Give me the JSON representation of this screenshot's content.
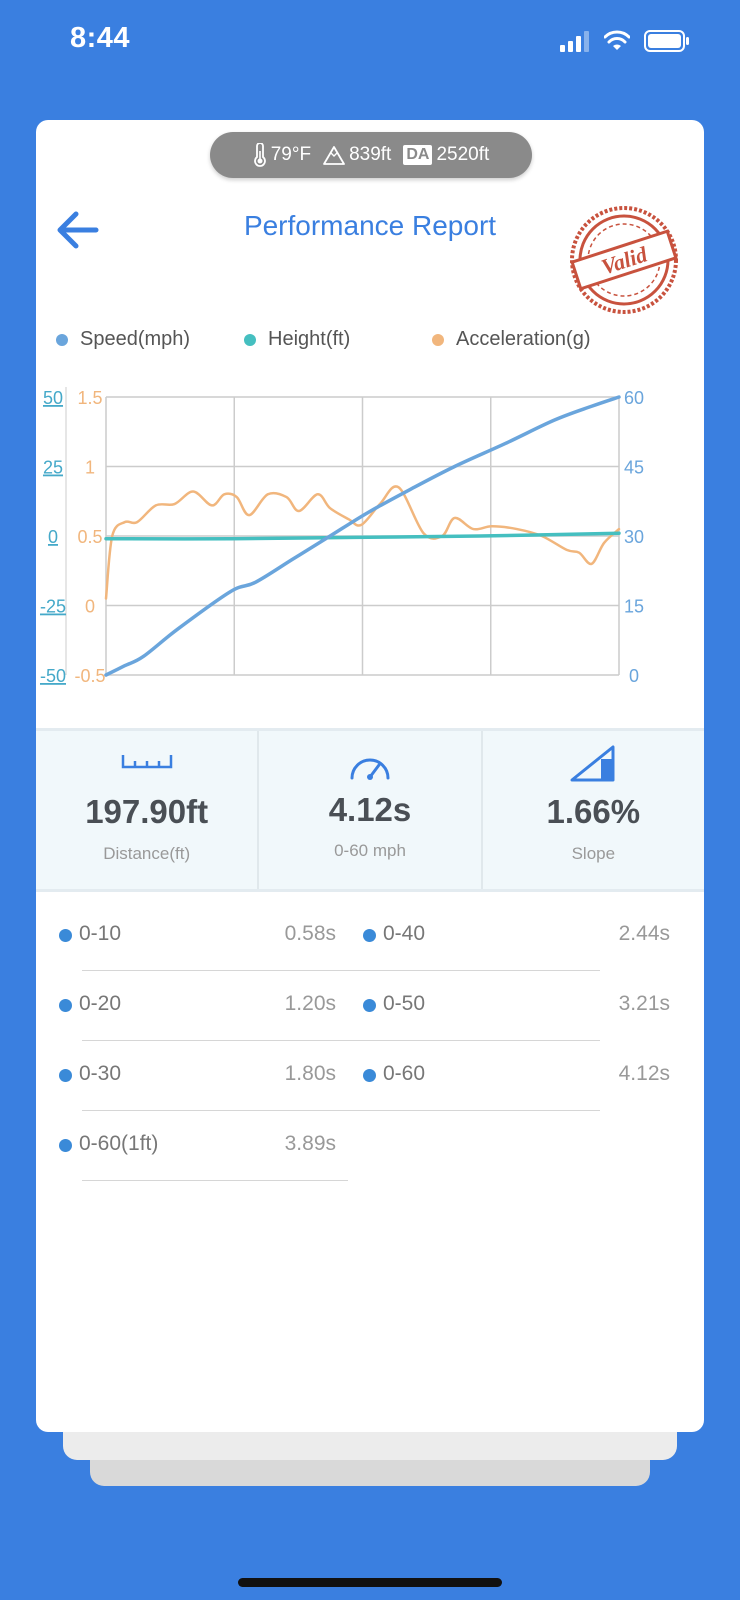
{
  "status_bar": {
    "time": "8:44"
  },
  "environment": {
    "temperature": "79°F",
    "altitude": "839ft",
    "da_label": "DA",
    "density_altitude": "2520ft"
  },
  "header": {
    "title": "Performance Report",
    "stamp_text": "Valid"
  },
  "colors": {
    "speed": "#6aa5dc",
    "height": "#45bfc0",
    "acceleration": "#f1b67d",
    "accent": "#3a7fe0"
  },
  "chart_data": {
    "type": "line",
    "legend": [
      "Speed(mph)",
      "Height(ft)",
      "Acceleration(g)"
    ],
    "grid": true,
    "axes": {
      "height_ticks": [
        "50",
        "25",
        "0",
        "-25",
        "-50"
      ],
      "height_range": [
        -50,
        50
      ],
      "acceleration_ticks": [
        "1.5",
        "1",
        "0.5",
        "0",
        "-0.5"
      ],
      "acceleration_range": [
        -0.5,
        1.5
      ],
      "speed_ticks": [
        "60",
        "45",
        "30",
        "15",
        "0"
      ],
      "speed_range": [
        0,
        60
      ],
      "time_range": [
        0,
        4.12
      ]
    },
    "series": [
      {
        "name": "Speed(mph)",
        "axis": "speed",
        "x": [
          0,
          0.15,
          0.3,
          0.58,
          1.0,
          1.2,
          1.5,
          1.8,
          2.1,
          2.44,
          2.8,
          3.21,
          3.6,
          3.9,
          4.12
        ],
        "y": [
          0,
          2,
          4,
          10,
          18,
          20,
          25,
          30,
          35,
          40,
          45,
          50,
          55,
          58,
          60
        ]
      },
      {
        "name": "Height(ft)",
        "axis": "height",
        "x": [
          0,
          1.0,
          2.0,
          3.0,
          4.12
        ],
        "y": [
          -1,
          -1,
          -0.5,
          0,
          1
        ]
      },
      {
        "name": "Acceleration(g)",
        "axis": "acceleration",
        "x": [
          0,
          0.05,
          0.15,
          0.25,
          0.4,
          0.55,
          0.7,
          0.85,
          0.95,
          1.05,
          1.15,
          1.3,
          1.45,
          1.55,
          1.7,
          1.8,
          1.95,
          2.05,
          2.2,
          2.35,
          2.55,
          2.7,
          2.8,
          2.95,
          3.1,
          3.3,
          3.5,
          3.7,
          3.8,
          3.9,
          4.0,
          4.12
        ],
        "y": [
          0.05,
          0.5,
          0.6,
          0.6,
          0.72,
          0.73,
          0.82,
          0.72,
          0.8,
          0.78,
          0.65,
          0.8,
          0.78,
          0.68,
          0.8,
          0.7,
          0.62,
          0.58,
          0.73,
          0.85,
          0.52,
          0.5,
          0.63,
          0.55,
          0.57,
          0.55,
          0.5,
          0.4,
          0.38,
          0.3,
          0.45,
          0.55
        ]
      }
    ]
  },
  "stats": [
    {
      "value": "197.90ft",
      "label": "Distance(ft)"
    },
    {
      "value": "4.12s",
      "label": "0-60 mph"
    },
    {
      "value": "1.66%",
      "label": "Slope"
    }
  ],
  "splits": [
    {
      "label": "0-10",
      "value": "0.58s"
    },
    {
      "label": "0-40",
      "value": "2.44s"
    },
    {
      "label": "0-20",
      "value": "1.20s"
    },
    {
      "label": "0-50",
      "value": "3.21s"
    },
    {
      "label": "0-30",
      "value": "1.80s"
    },
    {
      "label": "0-60",
      "value": "4.12s"
    },
    {
      "label": "0-60(1ft)",
      "value": "3.89s"
    }
  ]
}
